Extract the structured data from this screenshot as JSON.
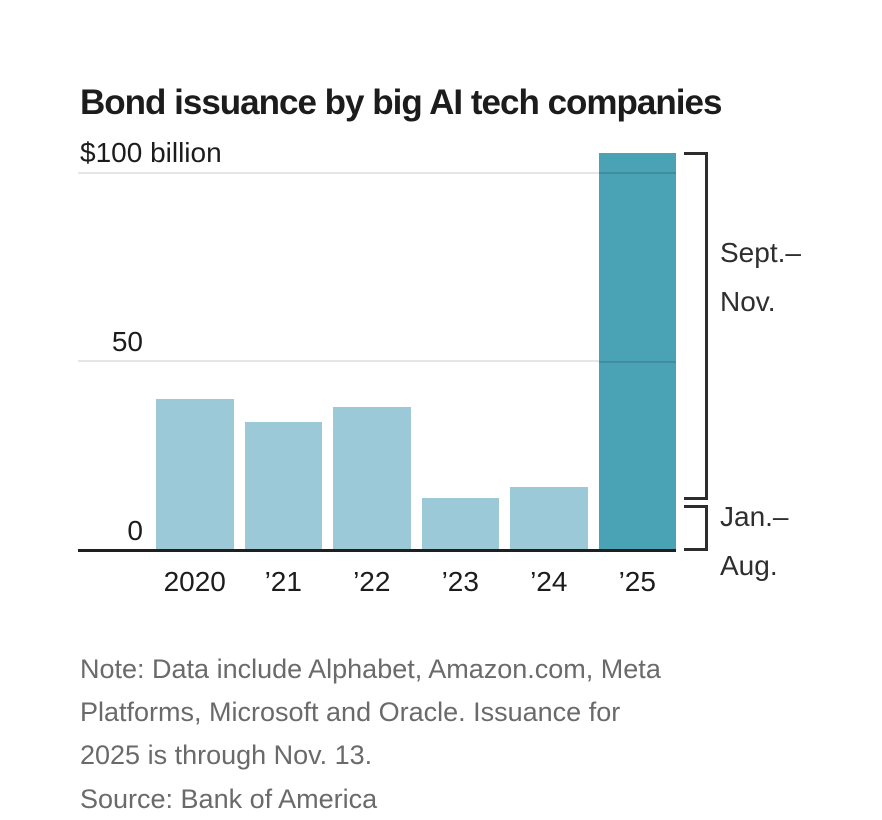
{
  "title": "Bond issuance by big AI tech companies",
  "chart_data": {
    "type": "bar",
    "title": "Bond issuance by big AI tech companies",
    "unit": "billions of U.S. dollars",
    "categories": [
      "2020",
      "’21",
      "’22",
      "’23",
      "’24",
      "’25"
    ],
    "values": [
      40,
      34,
      38,
      14,
      17,
      105
    ],
    "highlight_index": 5,
    "breakdown_2025": {
      "jan_aug": 13,
      "sept_nov": 92
    },
    "ylim": [
      0,
      108
    ],
    "yticks": [
      {
        "value": 100,
        "label": "$100 billion"
      },
      {
        "value": 50,
        "label": "50"
      },
      {
        "value": 0,
        "label": "0"
      }
    ],
    "grid": "horizontal",
    "legend": "none",
    "colors": {
      "bar_default": "#9BC9D8",
      "bar_highlight": "#4AA3B5"
    }
  },
  "annotations": {
    "sept_nov": {
      "line1": "Sept.–",
      "line2": "Nov."
    },
    "jan_aug": {
      "line1": "Jan.–",
      "line2": "Aug."
    }
  },
  "footer": {
    "note_lines": [
      "Note: Data include Alphabet, Amazon.com, Meta",
      "Platforms, Microsoft and Oracle. Issuance for",
      "2025 is through Nov. 13."
    ],
    "source": "Source: Bank of America"
  },
  "colors": {
    "axis": "#1F1F1F",
    "gridline": "#E6E6E6",
    "text_dark": "#1C1C1C",
    "text_note": "#6A6A6A",
    "bracket": "#2D2D2D"
  }
}
